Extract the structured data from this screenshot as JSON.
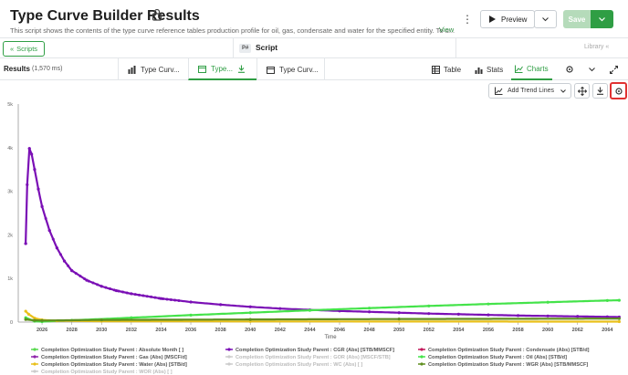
{
  "header": {
    "title": "Type Curve Builder Results",
    "description": "This script shows the contents of the type curve reference tables production profile for oil, gas, condensate and water for the specified entity. To u...",
    "view_link": "View",
    "preview_label": "Preview",
    "save_label": "Save"
  },
  "scriptbar": {
    "scripts_label": "Scripts",
    "script_tag": "P#",
    "script_label": "Script",
    "library_label": "Library"
  },
  "results": {
    "label": "Results",
    "time": "(1,570 ms)",
    "tabs": [
      {
        "label": "Type Curv..."
      },
      {
        "label": "Type..."
      },
      {
        "label": "Type Curv..."
      }
    ],
    "views": {
      "table": "Table",
      "stats": "Stats",
      "charts": "Charts"
    }
  },
  "toolbar": {
    "trend_lines_label": "Add Trend Lines"
  },
  "colors": {
    "accent": "#2f9e44",
    "highlight": "#e03131",
    "cgr": "#7a0fb5",
    "oil": "#44e34a",
    "absmonth": "#59d94f",
    "water": "#e9c01a",
    "wgr": "#5f8f1f",
    "condensate": "#c2185b"
  },
  "chart_data": {
    "type": "line",
    "xlabel": "Time",
    "ylabel": "",
    "y_ticks": [
      "0",
      "1k",
      "2k",
      "3k",
      "4k",
      "5k"
    ],
    "ylim": [
      0,
      5000
    ],
    "x_ticks": [
      "2026",
      "2028",
      "2030",
      "2032",
      "2034",
      "2036",
      "2038",
      "2040",
      "2042",
      "2044",
      "2046",
      "2048",
      "2050",
      "2052",
      "2054",
      "2056",
      "2058",
      "2060",
      "2062",
      "2064"
    ],
    "xlim": [
      2024.4,
      2064.9
    ],
    "grid": false,
    "series": [
      {
        "name": "Completion Optimization Study Parent : CGR (Abs) [STB/MMSCF]",
        "color": "#7a0fb5",
        "x": [
          2024.9,
          2025.0,
          2025.15,
          2025.3,
          2025.5,
          2025.75,
          2026,
          2026.5,
          2027,
          2027.5,
          2028,
          2029,
          2030,
          2031,
          2032,
          2034,
          2036,
          2038,
          2040,
          2042,
          2044,
          2046,
          2048,
          2050,
          2052,
          2054,
          2056,
          2058,
          2060,
          2062,
          2064,
          2064.8
        ],
        "values": [
          1800,
          3150,
          3980,
          3850,
          3500,
          3050,
          2650,
          2100,
          1700,
          1400,
          1180,
          960,
          820,
          720,
          650,
          540,
          460,
          400,
          350,
          310,
          280,
          255,
          235,
          215,
          195,
          180,
          165,
          150,
          140,
          130,
          120,
          115
        ]
      },
      {
        "name": "Completion Optimization Study Parent : Oil (Abs) [STB/d]",
        "color": "#44e34a",
        "x": [
          2024.9,
          2025.5,
          2026,
          2028,
          2032,
          2036,
          2040,
          2044,
          2048,
          2052,
          2056,
          2060,
          2064,
          2064.8
        ],
        "values": [
          100,
          20,
          10,
          40,
          100,
          160,
          215,
          270,
          320,
          370,
          415,
          455,
          495,
          500
        ]
      },
      {
        "name": "Completion Optimization Study Parent : Water (Abs) [STB/d]",
        "color": "#e9c01a",
        "x": [
          2024.9,
          2025.1,
          2025.5,
          2026,
          2027,
          2030,
          2040,
          2064.8
        ],
        "values": [
          250,
          180,
          90,
          50,
          30,
          20,
          15,
          10
        ]
      },
      {
        "name": "Completion Optimization Study Parent : WGR (Abs) [STB/MMSCF]",
        "color": "#5f8f1f",
        "x": [
          2024.9,
          2025.5,
          2026,
          2030,
          2040,
          2050,
          2064.8
        ],
        "values": [
          60,
          40,
          35,
          50,
          60,
          70,
          80
        ]
      }
    ],
    "legend": [
      {
        "name": "Completion Optimization Study Parent : Absolute Month [ ]",
        "color": "#59d94f",
        "faded": false
      },
      {
        "name": "Completion Optimization Study Parent : CGR (Abs) [STB/MMSCF]",
        "color": "#7a0fb5",
        "faded": false
      },
      {
        "name": "Completion Optimization Study Parent : Condensate (Abs) [STB/d]",
        "color": "#c2185b",
        "faded": false
      },
      {
        "name": "Completion Optimization Study Parent : Gas (Abs) [MSCF/d]",
        "color": "#8e24aa",
        "faded": false
      },
      {
        "name": "Completion Optimization Study Parent : GOR (Abs) [MSCF/STB]",
        "color": "#cccccc",
        "faded": true
      },
      {
        "name": "Completion Optimization Study Parent : Oil (Abs) [STB/d]",
        "color": "#44e34a",
        "faded": false
      },
      {
        "name": "Completion Optimization Study Parent : Water (Abs) [STB/d]",
        "color": "#e9c01a",
        "faded": false
      },
      {
        "name": "Completion Optimization Study Parent : WC (Abs) [ ]",
        "color": "#cccccc",
        "faded": true
      },
      {
        "name": "Completion Optimization Study Parent : WGR (Abs) [STB/MMSCF]",
        "color": "#5f8f1f",
        "faded": false
      },
      {
        "name": "Completion Optimization Study Parent : WOR (Abs) [ ]",
        "color": "#cccccc",
        "faded": true
      }
    ]
  }
}
